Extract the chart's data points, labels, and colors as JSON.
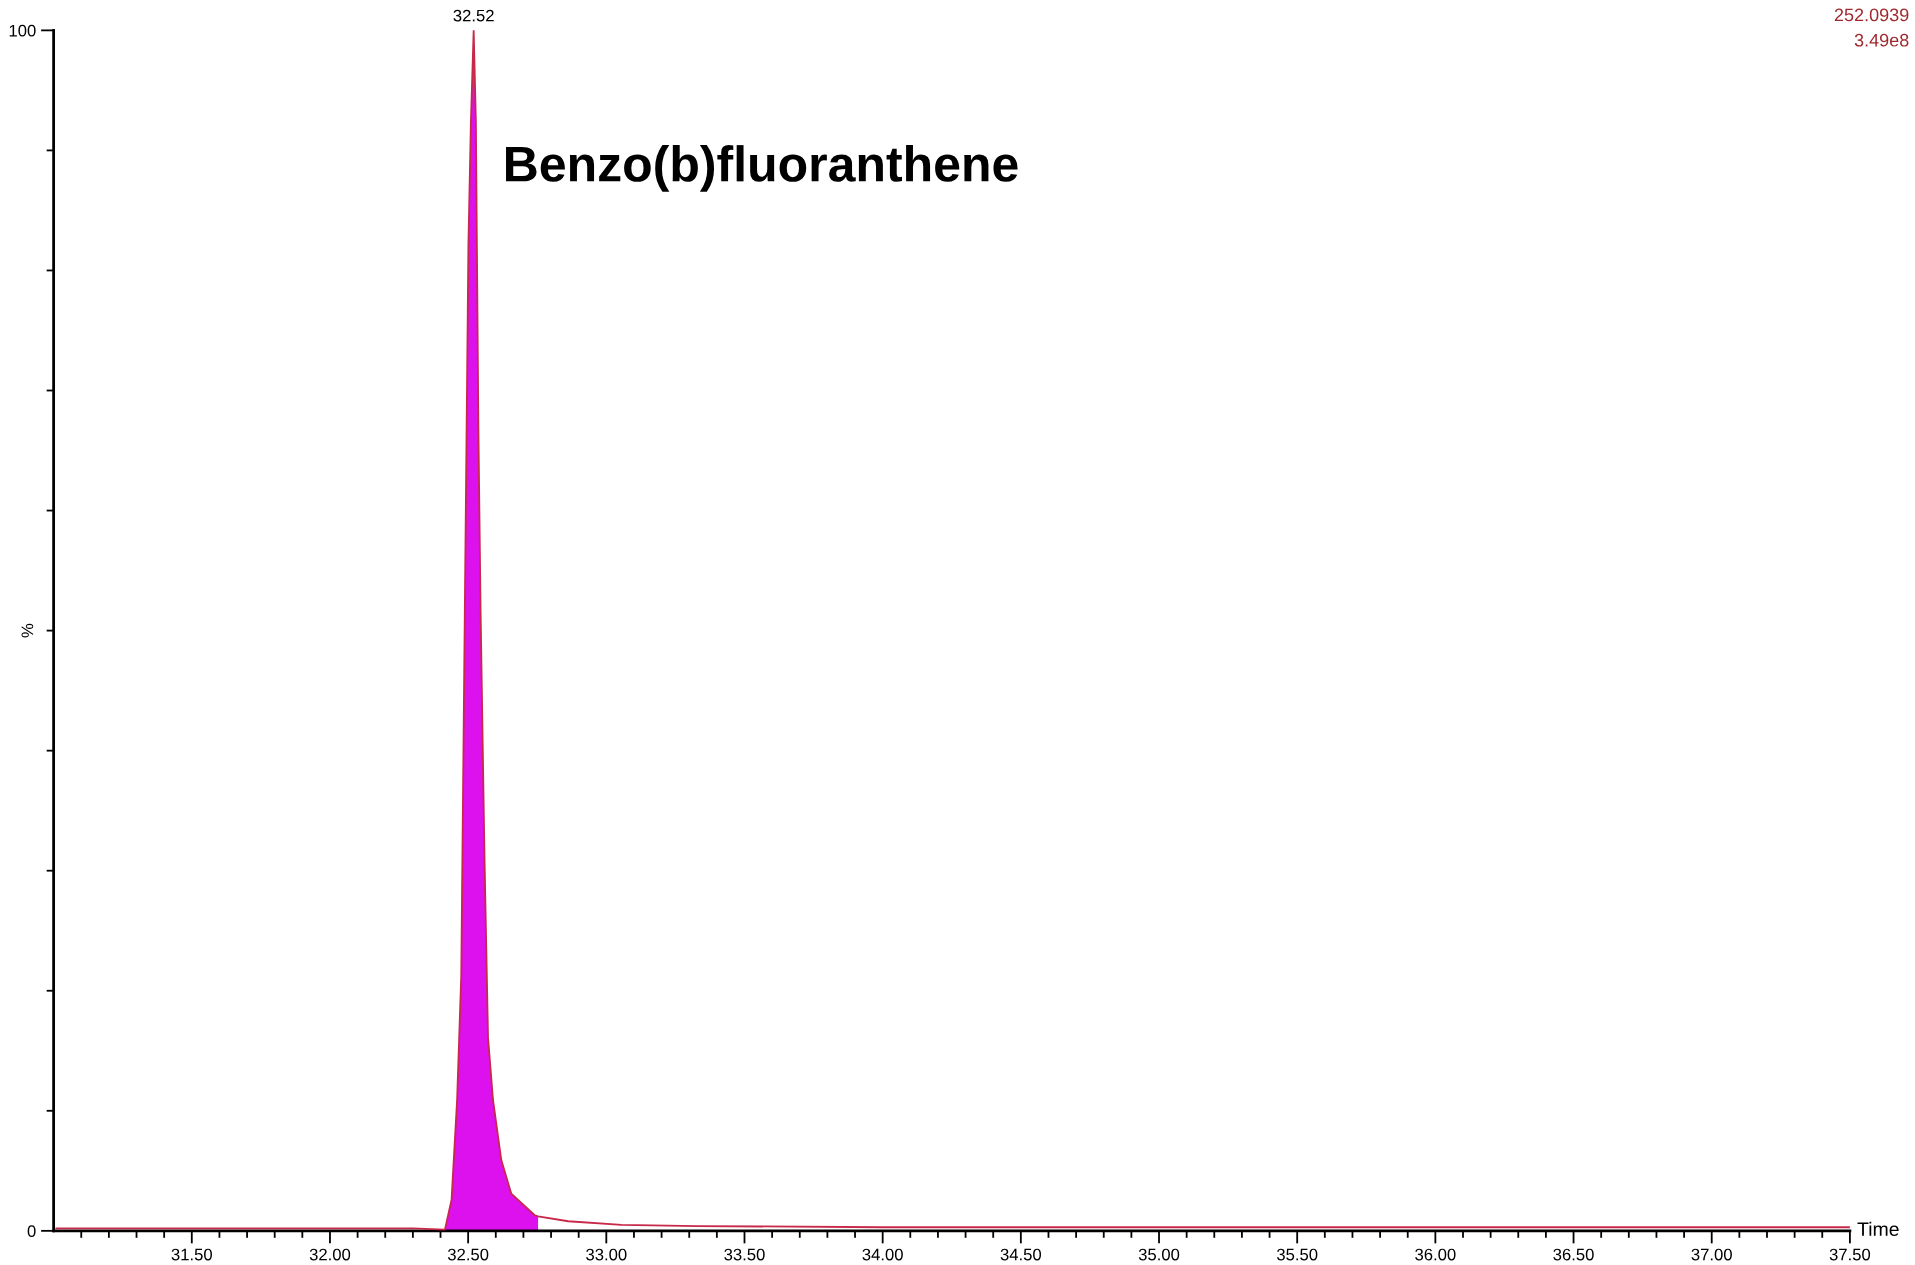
{
  "chart_data": {
    "type": "line",
    "xlabel": "Time",
    "ylabel": "%",
    "series": [
      {
        "color": "#c8284a",
        "x": [
          31.01,
          31.5,
          32.0,
          32.3,
          32.416,
          32.44,
          32.46,
          32.475,
          32.488,
          32.501,
          32.51,
          32.52,
          32.528,
          32.537,
          32.545,
          32.559,
          32.572,
          32.59,
          32.62,
          32.656,
          32.741,
          32.753,
          32.862,
          33.055,
          33.33,
          34.0,
          35.0,
          36.0,
          37.0,
          37.5
        ],
        "values": [
          0.2,
          0.2,
          0.2,
          0.2,
          0.1,
          2.6,
          10.9,
          21.2,
          51.7,
          82.2,
          92.4,
          100,
          92.4,
          67,
          51.7,
          31.3,
          16.1,
          10.9,
          5.9,
          3.1,
          1.3,
          1.2,
          0.8,
          0.5,
          0.4,
          0.3,
          0.3,
          0.3,
          0.3,
          0.3
        ]
      },
      {
        "type": "area",
        "color": "#dd10ee",
        "x": [
          32.416,
          32.44,
          32.46,
          32.475,
          32.488,
          32.501,
          32.51,
          32.52,
          32.528,
          32.537,
          32.545,
          32.559,
          32.572,
          32.59,
          32.62,
          32.656,
          32.741,
          32.753
        ],
        "values": [
          0.1,
          2.6,
          10.9,
          21.2,
          51.7,
          82.2,
          92.4,
          100,
          92.4,
          67,
          51.7,
          31.3,
          16.1,
          10.9,
          5.9,
          3.1,
          1.3,
          1.2
        ]
      }
    ],
    "xlim": [
      31.0,
      37.5
    ],
    "xticks": [
      {
        "value": 31.1,
        "label": null
      },
      {
        "value": 31.2,
        "label": null
      },
      {
        "value": 31.3,
        "label": null
      },
      {
        "value": 31.4,
        "label": null
      },
      {
        "value": 31.5,
        "label": "31.50"
      },
      {
        "value": 31.6,
        "label": null
      },
      {
        "value": 31.7,
        "label": null
      },
      {
        "value": 31.8,
        "label": null
      },
      {
        "value": 31.9,
        "label": null
      },
      {
        "value": 32.0,
        "label": "32.00"
      },
      {
        "value": 32.1,
        "label": null
      },
      {
        "value": 32.2,
        "label": null
      },
      {
        "value": 32.3,
        "label": null
      },
      {
        "value": 32.4,
        "label": null
      },
      {
        "value": 32.5,
        "label": "32.50"
      },
      {
        "value": 32.6,
        "label": null
      },
      {
        "value": 32.7,
        "label": null
      },
      {
        "value": 32.8,
        "label": null
      },
      {
        "value": 32.9,
        "label": null
      },
      {
        "value": 33.0,
        "label": "33.00"
      },
      {
        "value": 33.1,
        "label": null
      },
      {
        "value": 33.2,
        "label": null
      },
      {
        "value": 33.3,
        "label": null
      },
      {
        "value": 33.4,
        "label": null
      },
      {
        "value": 33.5,
        "label": "33.50"
      },
      {
        "value": 33.6,
        "label": null
      },
      {
        "value": 33.7,
        "label": null
      },
      {
        "value": 33.8,
        "label": null
      },
      {
        "value": 33.9,
        "label": null
      },
      {
        "value": 34.0,
        "label": "34.00"
      },
      {
        "value": 34.1,
        "label": null
      },
      {
        "value": 34.2,
        "label": null
      },
      {
        "value": 34.3,
        "label": null
      },
      {
        "value": 34.4,
        "label": null
      },
      {
        "value": 34.5,
        "label": "34.50"
      },
      {
        "value": 34.6,
        "label": null
      },
      {
        "value": 34.7,
        "label": null
      },
      {
        "value": 34.8,
        "label": null
      },
      {
        "value": 34.9,
        "label": null
      },
      {
        "value": 35.0,
        "label": "35.00"
      },
      {
        "value": 35.1,
        "label": null
      },
      {
        "value": 35.2,
        "label": null
      },
      {
        "value": 35.3,
        "label": null
      },
      {
        "value": 35.4,
        "label": null
      },
      {
        "value": 35.5,
        "label": "35.50"
      },
      {
        "value": 35.6,
        "label": null
      },
      {
        "value": 35.7,
        "label": null
      },
      {
        "value": 35.8,
        "label": null
      },
      {
        "value": 35.9,
        "label": null
      },
      {
        "value": 36.0,
        "label": "36.00"
      },
      {
        "value": 36.1,
        "label": null
      },
      {
        "value": 36.2,
        "label": null
      },
      {
        "value": 36.3,
        "label": null
      },
      {
        "value": 36.4,
        "label": null
      },
      {
        "value": 36.5,
        "label": "36.50"
      },
      {
        "value": 36.6,
        "label": null
      },
      {
        "value": 36.7,
        "label": null
      },
      {
        "value": 36.8,
        "label": null
      },
      {
        "value": 36.9,
        "label": null
      },
      {
        "value": 37.0,
        "label": "37.00"
      },
      {
        "value": 37.1,
        "label": null
      },
      {
        "value": 37.2,
        "label": null
      },
      {
        "value": 37.3,
        "label": null
      },
      {
        "value": 37.4,
        "label": null
      },
      {
        "value": 37.5,
        "label": "37.50"
      }
    ],
    "ylim": [
      0,
      100
    ],
    "yticks": [
      0,
      {
        "value": 10,
        "label": null
      },
      {
        "value": 20,
        "label": null
      },
      {
        "value": 30,
        "label": null
      },
      {
        "value": 40,
        "label": null
      },
      {
        "value": 50,
        "label": null
      },
      {
        "value": 60,
        "label": null
      },
      {
        "value": 70,
        "label": null
      },
      {
        "value": 80,
        "label": null
      },
      {
        "value": 90,
        "label": null
      },
      100
    ],
    "annotations": [
      {
        "text": "32.52",
        "x": 32.52,
        "y": 100
      },
      "Benzo(b)fluoranthene",
      "252.0939",
      "3.49e8"
    ]
  }
}
